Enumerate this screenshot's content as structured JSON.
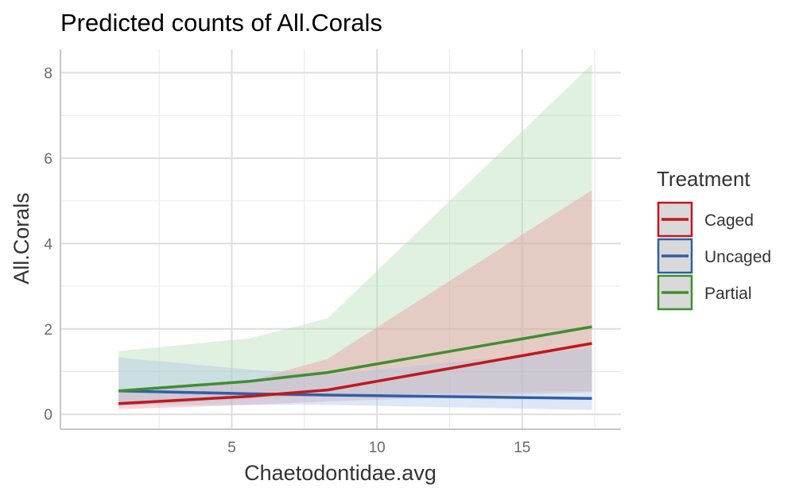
{
  "chart_data": {
    "type": "line",
    "title": "Predicted counts of All.Corals",
    "xlabel": "Chaetodontidae.avg",
    "ylabel": "All.Corals",
    "xlim": [
      -0.9,
      18.4
    ],
    "ylim": [
      -0.35,
      8.55
    ],
    "x_ticks": [
      5,
      10,
      15
    ],
    "x_ticks_labels": [
      "5",
      "10",
      "15"
    ],
    "x_minor_ticks": [
      2.5,
      7.5,
      12.5,
      17.5
    ],
    "y_ticks": [
      0,
      2,
      4,
      6,
      8
    ],
    "y_ticks_labels": [
      "0",
      "2",
      "4",
      "6",
      "8"
    ],
    "y_minor_ticks": [
      1,
      3,
      5,
      7
    ],
    "grid": true,
    "legend": {
      "title": "Treatment",
      "position": "right",
      "entries": [
        "Caged",
        "Uncaged",
        "Partial"
      ]
    },
    "x": [
      1.1,
      5.6,
      8.3,
      17.4
    ],
    "series": [
      {
        "name": "Caged",
        "color": "#c4161c",
        "fill": "#e8959e",
        "values": [
          0.25,
          0.42,
          0.57,
          1.66
        ],
        "lower": [
          0.12,
          0.22,
          0.3,
          0.52
        ],
        "upper": [
          0.55,
          0.78,
          1.3,
          5.25
        ]
      },
      {
        "name": "Uncaged",
        "color": "#2f5fa8",
        "fill": "#a9c3e6",
        "values": [
          0.55,
          0.48,
          0.45,
          0.37
        ],
        "lower": [
          0.22,
          0.22,
          0.22,
          0.1
        ],
        "upper": [
          1.33,
          1.05,
          0.93,
          1.55
        ]
      },
      {
        "name": "Partial",
        "color": "#3f8f2f",
        "fill": "#b5dcb0",
        "values": [
          0.55,
          0.77,
          0.98,
          2.05
        ],
        "lower": [
          0.2,
          0.35,
          0.45,
          0.55
        ],
        "upper": [
          1.48,
          1.78,
          2.25,
          8.2
        ]
      }
    ]
  }
}
